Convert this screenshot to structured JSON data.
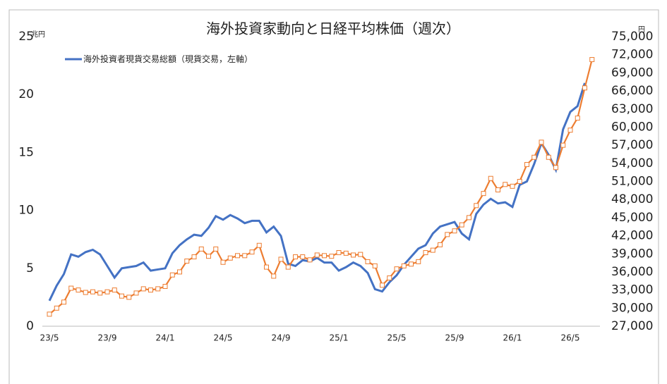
{
  "chart_data": {
    "type": "line",
    "title": "海外投資家動向と日経平均株価（週次）",
    "ylabel": "兆円",
    "y2label": "円",
    "categories": [
      "23/5",
      null,
      null,
      null,
      null,
      null,
      null,
      null,
      "23/9",
      null,
      null,
      null,
      null,
      null,
      null,
      null,
      "24/1",
      null,
      null,
      null,
      null,
      null,
      null,
      null,
      "24/5",
      null,
      null,
      null,
      null,
      null,
      null,
      null,
      "24/9",
      null,
      null,
      null,
      null,
      null,
      null,
      null,
      "25/1",
      null,
      null,
      null,
      null,
      null,
      null,
      null,
      "25/5",
      null,
      null,
      null,
      null,
      null,
      null,
      null,
      "25/9",
      null,
      null,
      null,
      null,
      null,
      null,
      null,
      "26/1",
      null,
      null,
      null,
      null,
      null,
      null,
      null,
      "26/5",
      null,
      null,
      null
    ],
    "series": [
      {
        "name": "海外投資者現貨交易総額（現貨交易，左軸）",
        "color": "#4472c4",
        "values": [
          2.2,
          3.5,
          4.5,
          6.2,
          6.0,
          6.4,
          6.6,
          6.2,
          5.2,
          4.2,
          5.0,
          5.1,
          5.2,
          5.5,
          4.8,
          4.9,
          5.0,
          6.3,
          7.0,
          7.5,
          7.9,
          7.8,
          8.5,
          9.5,
          9.2,
          9.6,
          9.3,
          8.9,
          9.1,
          9.1,
          8.1,
          8.6,
          7.8,
          5.4,
          5.2,
          5.7,
          5.6,
          5.9,
          5.5,
          5.5,
          4.8,
          5.1,
          5.5,
          5.2,
          4.6,
          3.2,
          3.0,
          3.8,
          4.4,
          5.3,
          6.0,
          6.7,
          7.0,
          8.0,
          8.6,
          8.8,
          9.0,
          8.0,
          7.5,
          9.7,
          10.5,
          11.0,
          10.6,
          10.7,
          10.3,
          12.2,
          12.5,
          14.0,
          15.8,
          14.8,
          13.5,
          17.0,
          18.5,
          19.0,
          21.0,
          null
        ]
      },
      {
        "color": "#ed7d31",
        "axis": "y2",
        "values": [
          29000,
          30000,
          31000,
          33300,
          33000,
          32600,
          32700,
          32500,
          32700,
          33000,
          32000,
          31800,
          32500,
          33200,
          33000,
          33200,
          33600,
          35500,
          36000,
          37800,
          38500,
          39800,
          38600,
          39800,
          37600,
          38300,
          38700,
          38700,
          39300,
          40400,
          36800,
          35300,
          38100,
          36800,
          38500,
          38500,
          38000,
          38800,
          38700,
          38600,
          39200,
          39100,
          38800,
          38900,
          37700,
          37000,
          33800,
          35000,
          36500,
          37000,
          37300,
          37700,
          39200,
          39600,
          40500,
          42200,
          42800,
          43800,
          45000,
          47000,
          49000,
          51500,
          49600,
          50500,
          50200,
          51000,
          53800,
          55000,
          57500,
          55000,
          53300,
          57000,
          59500,
          61500,
          66500,
          71200
        ]
      }
    ],
    "ylim": [
      0,
      25
    ],
    "yticks": [
      0,
      5,
      10,
      15,
      20,
      25
    ],
    "y2lim": [
      27000,
      75000
    ],
    "y2ticks": [
      {
        "value": 27000,
        "label": "27,000"
      },
      {
        "value": 30000,
        "label": "30,000"
      },
      {
        "value": 33000,
        "label": "33,000"
      },
      {
        "value": 36000,
        "label": "36,000"
      },
      {
        "value": 39000,
        "label": "39,000"
      },
      {
        "value": 42000,
        "label": "42,000"
      },
      {
        "value": 45000,
        "label": "45,000"
      },
      {
        "value": 48000,
        "label": "48,000"
      },
      {
        "value": 51000,
        "label": "51,000"
      },
      {
        "value": 54000,
        "label": "54,000"
      },
      {
        "value": 57000,
        "label": "57,000"
      },
      {
        "value": 60000,
        "label": "60,000"
      },
      {
        "value": 63000,
        "label": "63,000"
      },
      {
        "value": 66000,
        "label": "66,000"
      },
      {
        "value": 69000,
        "label": "69,000"
      },
      {
        "value": 72000,
        "label": "72,000"
      },
      {
        "value": 75000,
        "label": "75,000"
      }
    ],
    "grid": false
  }
}
